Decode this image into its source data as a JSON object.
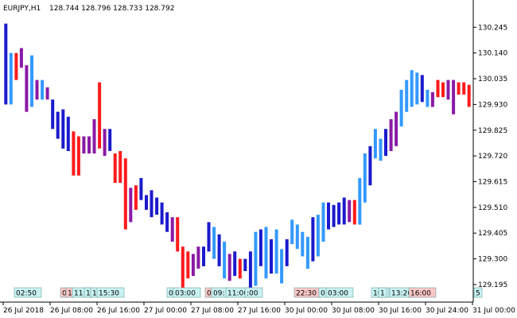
{
  "header": {
    "symbol": "EURJPY,H1",
    "ohlc": "128.744 128.796 128.733 128.792"
  },
  "colors": {
    "background": "#ffffff",
    "axis": "#000000",
    "palette": {
      "R": "#ff1a1a",
      "P": "#8a1aa6",
      "B": "#1a1acc",
      "L": "#3399ff"
    }
  },
  "chart_data": {
    "type": "bar",
    "grid": false,
    "ylim": [
      129.13,
      130.34
    ],
    "y_ticks": [
      "130.245",
      "130.140",
      "130.035",
      "129.930",
      "129.825",
      "129.720",
      "129.615",
      "129.510",
      "129.405",
      "129.300",
      "129.195"
    ],
    "x_ticks": [
      "26 Jul 2018",
      "26 Jul 08:00",
      "26 Jul 16:00",
      "27 Jul 00:00",
      "27 Jul 08:00",
      "27 Jul 16:00",
      "30 Jul 00:00",
      "30 Jul 08:00",
      "30 Jul 16:00",
      "30 Jul 24:00",
      "31 Jul 00:00"
    ],
    "bars": [
      {
        "high": 130.26,
        "low": 129.93,
        "c": "B"
      },
      {
        "high": 130.14,
        "low": 129.93,
        "c": "L"
      },
      {
        "high": 130.14,
        "low": 130.03,
        "c": "R"
      },
      {
        "high": 130.16,
        "low": 130.08,
        "c": "P"
      },
      {
        "high": 130.09,
        "low": 129.9,
        "c": "P"
      },
      {
        "high": 130.13,
        "low": 129.92,
        "c": "L"
      },
      {
        "high": 130.03,
        "low": 129.95,
        "c": "P"
      },
      {
        "high": 130.03,
        "low": 129.95,
        "c": "L"
      },
      {
        "high": 130.0,
        "low": 129.95,
        "c": "P"
      },
      {
        "high": 129.95,
        "low": 129.83,
        "c": "B"
      },
      {
        "high": 129.9,
        "low": 129.79,
        "c": "B"
      },
      {
        "high": 129.91,
        "low": 129.75,
        "c": "B"
      },
      {
        "high": 129.88,
        "low": 129.74,
        "c": "B"
      },
      {
        "high": 129.82,
        "low": 129.64,
        "c": "R"
      },
      {
        "high": 129.8,
        "low": 129.64,
        "c": "R"
      },
      {
        "high": 129.8,
        "low": 129.73,
        "c": "P"
      },
      {
        "high": 129.8,
        "low": 129.73,
        "c": "P"
      },
      {
        "high": 129.87,
        "low": 129.73,
        "c": "P"
      },
      {
        "high": 130.02,
        "low": 129.75,
        "c": "R"
      },
      {
        "high": 129.83,
        "low": 129.72,
        "c": "P"
      },
      {
        "high": 129.83,
        "low": 129.74,
        "c": "B"
      },
      {
        "high": 129.73,
        "low": 129.61,
        "c": "R"
      },
      {
        "high": 129.74,
        "low": 129.61,
        "c": "R"
      },
      {
        "high": 129.71,
        "low": 129.42,
        "c": "R"
      },
      {
        "high": 129.59,
        "low": 129.45,
        "c": "P"
      },
      {
        "high": 129.6,
        "low": 129.5,
        "c": "R"
      },
      {
        "high": 129.63,
        "low": 129.54,
        "c": "B"
      },
      {
        "high": 129.56,
        "low": 129.5,
        "c": "B"
      },
      {
        "high": 129.58,
        "low": 129.47,
        "c": "B"
      },
      {
        "high": 129.55,
        "low": 129.48,
        "c": "B"
      },
      {
        "high": 129.53,
        "low": 129.44,
        "c": "B"
      },
      {
        "high": 129.49,
        "low": 129.41,
        "c": "B"
      },
      {
        "high": 129.47,
        "low": 129.37,
        "c": "P"
      },
      {
        "high": 129.47,
        "low": 129.33,
        "c": "R"
      },
      {
        "high": 129.35,
        "low": 129.18,
        "c": "R"
      },
      {
        "high": 129.33,
        "low": 129.22,
        "c": "R"
      },
      {
        "high": 129.32,
        "low": 129.23,
        "c": "P"
      },
      {
        "high": 129.35,
        "low": 129.26,
        "c": "P"
      },
      {
        "high": 129.35,
        "low": 129.27,
        "c": "B"
      },
      {
        "high": 129.45,
        "low": 129.33,
        "c": "B"
      },
      {
        "high": 129.43,
        "low": 129.3,
        "c": "L"
      },
      {
        "high": 129.4,
        "low": 129.27,
        "c": "B"
      },
      {
        "high": 129.37,
        "low": 129.22,
        "c": "L"
      },
      {
        "high": 129.32,
        "low": 129.21,
        "c": "P"
      },
      {
        "high": 129.33,
        "low": 129.23,
        "c": "B"
      },
      {
        "high": 129.3,
        "low": 129.22,
        "c": "R"
      },
      {
        "high": 129.3,
        "low": 129.25,
        "c": "B"
      },
      {
        "high": 129.33,
        "low": 129.15,
        "c": "B"
      },
      {
        "high": 129.41,
        "low": 129.19,
        "c": "L"
      },
      {
        "high": 129.42,
        "low": 129.27,
        "c": "B"
      },
      {
        "high": 129.43,
        "low": 129.22,
        "c": "L"
      },
      {
        "high": 129.38,
        "low": 129.24,
        "c": "B"
      },
      {
        "high": 129.42,
        "low": 129.24,
        "c": "L"
      },
      {
        "high": 129.34,
        "low": 129.2,
        "c": "L"
      },
      {
        "high": 129.38,
        "low": 129.27,
        "c": "B"
      },
      {
        "high": 129.46,
        "low": 129.36,
        "c": "L"
      },
      {
        "high": 129.44,
        "low": 129.34,
        "c": "L"
      },
      {
        "high": 129.41,
        "low": 129.31,
        "c": "L"
      },
      {
        "high": 129.39,
        "low": 129.26,
        "c": "L"
      },
      {
        "high": 129.47,
        "low": 129.29,
        "c": "B"
      },
      {
        "high": 129.48,
        "low": 129.31,
        "c": "L"
      },
      {
        "high": 129.53,
        "low": 129.37,
        "c": "L"
      },
      {
        "high": 129.53,
        "low": 129.42,
        "c": "B"
      },
      {
        "high": 129.52,
        "low": 129.43,
        "c": "B"
      },
      {
        "high": 129.53,
        "low": 129.44,
        "c": "B"
      },
      {
        "high": 129.55,
        "low": 129.44,
        "c": "B"
      },
      {
        "high": 129.54,
        "low": 129.45,
        "c": "P"
      },
      {
        "high": 129.54,
        "low": 129.44,
        "c": "R"
      },
      {
        "high": 129.63,
        "low": 129.44,
        "c": "L"
      },
      {
        "high": 129.73,
        "low": 129.53,
        "c": "L"
      },
      {
        "high": 129.76,
        "low": 129.6,
        "c": "B"
      },
      {
        "high": 129.83,
        "low": 129.71,
        "c": "L"
      },
      {
        "high": 129.79,
        "low": 129.7,
        "c": "L"
      },
      {
        "high": 129.83,
        "low": 129.72,
        "c": "B"
      },
      {
        "high": 129.87,
        "low": 129.74,
        "c": "P"
      },
      {
        "high": 129.9,
        "low": 129.76,
        "c": "P"
      },
      {
        "high": 129.99,
        "low": 129.84,
        "c": "L"
      },
      {
        "high": 130.03,
        "low": 129.9,
        "c": "L"
      },
      {
        "high": 130.07,
        "low": 129.92,
        "c": "L"
      },
      {
        "high": 130.06,
        "low": 129.93,
        "c": "L"
      },
      {
        "high": 130.05,
        "low": 129.94,
        "c": "B"
      },
      {
        "high": 129.99,
        "low": 129.92,
        "c": "L"
      },
      {
        "high": 129.98,
        "low": 129.92,
        "c": "P"
      },
      {
        "high": 130.03,
        "low": 129.96,
        "c": "R"
      },
      {
        "high": 130.02,
        "low": 129.96,
        "c": "R"
      },
      {
        "high": 130.03,
        "low": 129.95,
        "c": "P"
      },
      {
        "high": 130.03,
        "low": 129.89,
        "c": "P"
      },
      {
        "high": 130.02,
        "low": 129.97,
        "c": "R"
      },
      {
        "high": 130.02,
        "low": 129.97,
        "c": "R"
      },
      {
        "high": 130.01,
        "low": 129.92,
        "c": "R"
      }
    ]
  },
  "time_markers": [
    {
      "label": "02:50",
      "bg": "#c9f2f2"
    },
    {
      "label": "0",
      "bg": "#fbc6c6"
    },
    {
      "label": "1",
      "bg": "#fbc6c6"
    },
    {
      "label": "11:",
      "bg": "#c9f2f2"
    },
    {
      "label": "1",
      "bg": "#c9f2f2"
    },
    {
      "label": "1",
      "bg": "#c9f2f2"
    },
    {
      "label": "15:30",
      "bg": "#c9f2f2"
    },
    {
      "label": "0",
      "bg": "#c9f2f2"
    },
    {
      "label": "03:00",
      "bg": "#c9f2f2"
    },
    {
      "label": "0",
      "bg": "#fbc6c6"
    },
    {
      "label": "09:",
      "bg": "#c9f2f2"
    },
    {
      "label": "11:00",
      "bg": "#c9f2f2"
    },
    {
      "label": ":00",
      "bg": "#c9f2f2"
    },
    {
      "label": "22:30",
      "bg": "#fbc6c6"
    },
    {
      "label": "0",
      "bg": "#c9f2f2"
    },
    {
      "label": "03:00",
      "bg": "#c9f2f2"
    },
    {
      "label": "10:",
      "bg": "#c9f2f2"
    },
    {
      "label": "1",
      "bg": "#c9f2f2"
    },
    {
      "label": "13:26",
      "bg": "#c9f2f2"
    },
    {
      "label": "16:00",
      "bg": "#fbc6c6"
    },
    {
      "label": "5",
      "bg": "#c9f2f2"
    }
  ]
}
